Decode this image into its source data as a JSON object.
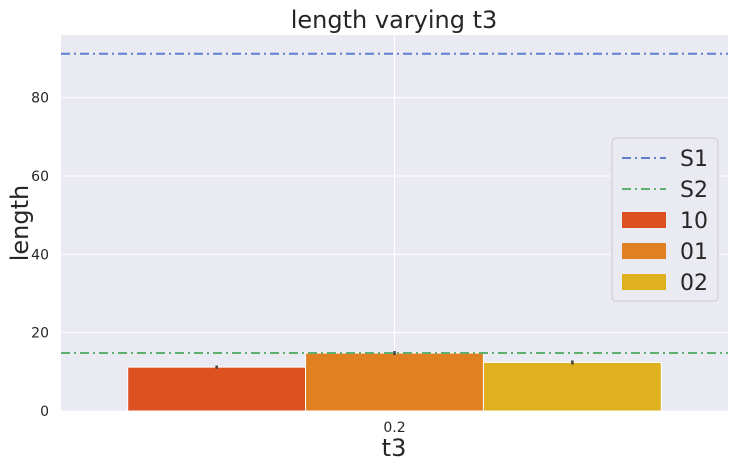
{
  "chart_data": {
    "type": "bar",
    "title": "length varying t3",
    "xlabel": "t3",
    "ylabel": "length",
    "categories": [
      "0.2"
    ],
    "ylim": [
      0,
      96
    ],
    "yticks": [
      0,
      20,
      40,
      60,
      80
    ],
    "grid": true,
    "legend_position": "right",
    "series": [
      {
        "name": "10",
        "color": "#DD5020",
        "values": [
          11.2
        ],
        "error": [
          0.4
        ]
      },
      {
        "name": "01",
        "color": "#E08020",
        "values": [
          14.8
        ],
        "error": [
          0.5
        ]
      },
      {
        "name": "02",
        "color": "#DFB020",
        "values": [
          12.4
        ],
        "error": [
          0.5
        ]
      }
    ],
    "reference_lines": [
      {
        "name": "S1",
        "color": "#5F7FCF",
        "style": "dashdot",
        "value": 91.2
      },
      {
        "name": "S2",
        "color": "#5FAF6F",
        "style": "dashdot",
        "value": 14.8
      }
    ],
    "colors": {
      "background": "#EAEAF2",
      "grid": "#FFFFFF",
      "text": "#262626"
    }
  }
}
